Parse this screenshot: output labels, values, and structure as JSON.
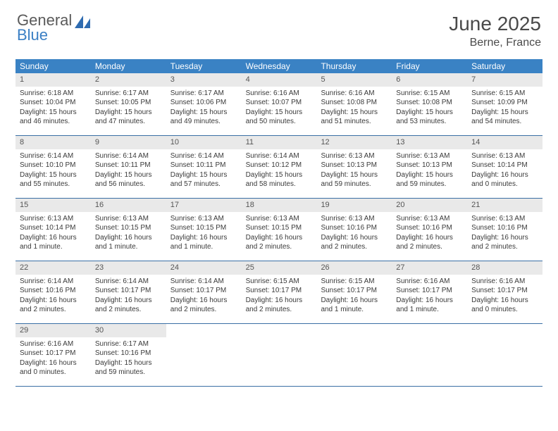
{
  "logo": {
    "general": "General",
    "blue": "Blue"
  },
  "title": "June 2025",
  "location": "Berne, France",
  "colors": {
    "header_bg": "#3a82c4",
    "header_text": "#ffffff",
    "daynum_bg": "#e9e9e9",
    "border": "#3a6fa5",
    "body_text": "#3a3a3a",
    "title_text": "#4a4a4a",
    "logo_gray": "#5a5a5a",
    "logo_blue": "#3a7fc4"
  },
  "weekdays": [
    "Sunday",
    "Monday",
    "Tuesday",
    "Wednesday",
    "Thursday",
    "Friday",
    "Saturday"
  ],
  "weeks": [
    [
      {
        "n": "1",
        "sr": "Sunrise: 6:18 AM",
        "ss": "Sunset: 10:04 PM",
        "dl": "Daylight: 15 hours and 46 minutes."
      },
      {
        "n": "2",
        "sr": "Sunrise: 6:17 AM",
        "ss": "Sunset: 10:05 PM",
        "dl": "Daylight: 15 hours and 47 minutes."
      },
      {
        "n": "3",
        "sr": "Sunrise: 6:17 AM",
        "ss": "Sunset: 10:06 PM",
        "dl": "Daylight: 15 hours and 49 minutes."
      },
      {
        "n": "4",
        "sr": "Sunrise: 6:16 AM",
        "ss": "Sunset: 10:07 PM",
        "dl": "Daylight: 15 hours and 50 minutes."
      },
      {
        "n": "5",
        "sr": "Sunrise: 6:16 AM",
        "ss": "Sunset: 10:08 PM",
        "dl": "Daylight: 15 hours and 51 minutes."
      },
      {
        "n": "6",
        "sr": "Sunrise: 6:15 AM",
        "ss": "Sunset: 10:08 PM",
        "dl": "Daylight: 15 hours and 53 minutes."
      },
      {
        "n": "7",
        "sr": "Sunrise: 6:15 AM",
        "ss": "Sunset: 10:09 PM",
        "dl": "Daylight: 15 hours and 54 minutes."
      }
    ],
    [
      {
        "n": "8",
        "sr": "Sunrise: 6:14 AM",
        "ss": "Sunset: 10:10 PM",
        "dl": "Daylight: 15 hours and 55 minutes."
      },
      {
        "n": "9",
        "sr": "Sunrise: 6:14 AM",
        "ss": "Sunset: 10:11 PM",
        "dl": "Daylight: 15 hours and 56 minutes."
      },
      {
        "n": "10",
        "sr": "Sunrise: 6:14 AM",
        "ss": "Sunset: 10:11 PM",
        "dl": "Daylight: 15 hours and 57 minutes."
      },
      {
        "n": "11",
        "sr": "Sunrise: 6:14 AM",
        "ss": "Sunset: 10:12 PM",
        "dl": "Daylight: 15 hours and 58 minutes."
      },
      {
        "n": "12",
        "sr": "Sunrise: 6:13 AM",
        "ss": "Sunset: 10:13 PM",
        "dl": "Daylight: 15 hours and 59 minutes."
      },
      {
        "n": "13",
        "sr": "Sunrise: 6:13 AM",
        "ss": "Sunset: 10:13 PM",
        "dl": "Daylight: 15 hours and 59 minutes."
      },
      {
        "n": "14",
        "sr": "Sunrise: 6:13 AM",
        "ss": "Sunset: 10:14 PM",
        "dl": "Daylight: 16 hours and 0 minutes."
      }
    ],
    [
      {
        "n": "15",
        "sr": "Sunrise: 6:13 AM",
        "ss": "Sunset: 10:14 PM",
        "dl": "Daylight: 16 hours and 1 minute."
      },
      {
        "n": "16",
        "sr": "Sunrise: 6:13 AM",
        "ss": "Sunset: 10:15 PM",
        "dl": "Daylight: 16 hours and 1 minute."
      },
      {
        "n": "17",
        "sr": "Sunrise: 6:13 AM",
        "ss": "Sunset: 10:15 PM",
        "dl": "Daylight: 16 hours and 1 minute."
      },
      {
        "n": "18",
        "sr": "Sunrise: 6:13 AM",
        "ss": "Sunset: 10:15 PM",
        "dl": "Daylight: 16 hours and 2 minutes."
      },
      {
        "n": "19",
        "sr": "Sunrise: 6:13 AM",
        "ss": "Sunset: 10:16 PM",
        "dl": "Daylight: 16 hours and 2 minutes."
      },
      {
        "n": "20",
        "sr": "Sunrise: 6:13 AM",
        "ss": "Sunset: 10:16 PM",
        "dl": "Daylight: 16 hours and 2 minutes."
      },
      {
        "n": "21",
        "sr": "Sunrise: 6:13 AM",
        "ss": "Sunset: 10:16 PM",
        "dl": "Daylight: 16 hours and 2 minutes."
      }
    ],
    [
      {
        "n": "22",
        "sr": "Sunrise: 6:14 AM",
        "ss": "Sunset: 10:16 PM",
        "dl": "Daylight: 16 hours and 2 minutes."
      },
      {
        "n": "23",
        "sr": "Sunrise: 6:14 AM",
        "ss": "Sunset: 10:17 PM",
        "dl": "Daylight: 16 hours and 2 minutes."
      },
      {
        "n": "24",
        "sr": "Sunrise: 6:14 AM",
        "ss": "Sunset: 10:17 PM",
        "dl": "Daylight: 16 hours and 2 minutes."
      },
      {
        "n": "25",
        "sr": "Sunrise: 6:15 AM",
        "ss": "Sunset: 10:17 PM",
        "dl": "Daylight: 16 hours and 2 minutes."
      },
      {
        "n": "26",
        "sr": "Sunrise: 6:15 AM",
        "ss": "Sunset: 10:17 PM",
        "dl": "Daylight: 16 hours and 1 minute."
      },
      {
        "n": "27",
        "sr": "Sunrise: 6:16 AM",
        "ss": "Sunset: 10:17 PM",
        "dl": "Daylight: 16 hours and 1 minute."
      },
      {
        "n": "28",
        "sr": "Sunrise: 6:16 AM",
        "ss": "Sunset: 10:17 PM",
        "dl": "Daylight: 16 hours and 0 minutes."
      }
    ],
    [
      {
        "n": "29",
        "sr": "Sunrise: 6:16 AM",
        "ss": "Sunset: 10:17 PM",
        "dl": "Daylight: 16 hours and 0 minutes."
      },
      {
        "n": "30",
        "sr": "Sunrise: 6:17 AM",
        "ss": "Sunset: 10:16 PM",
        "dl": "Daylight: 15 hours and 59 minutes."
      },
      null,
      null,
      null,
      null,
      null
    ]
  ]
}
